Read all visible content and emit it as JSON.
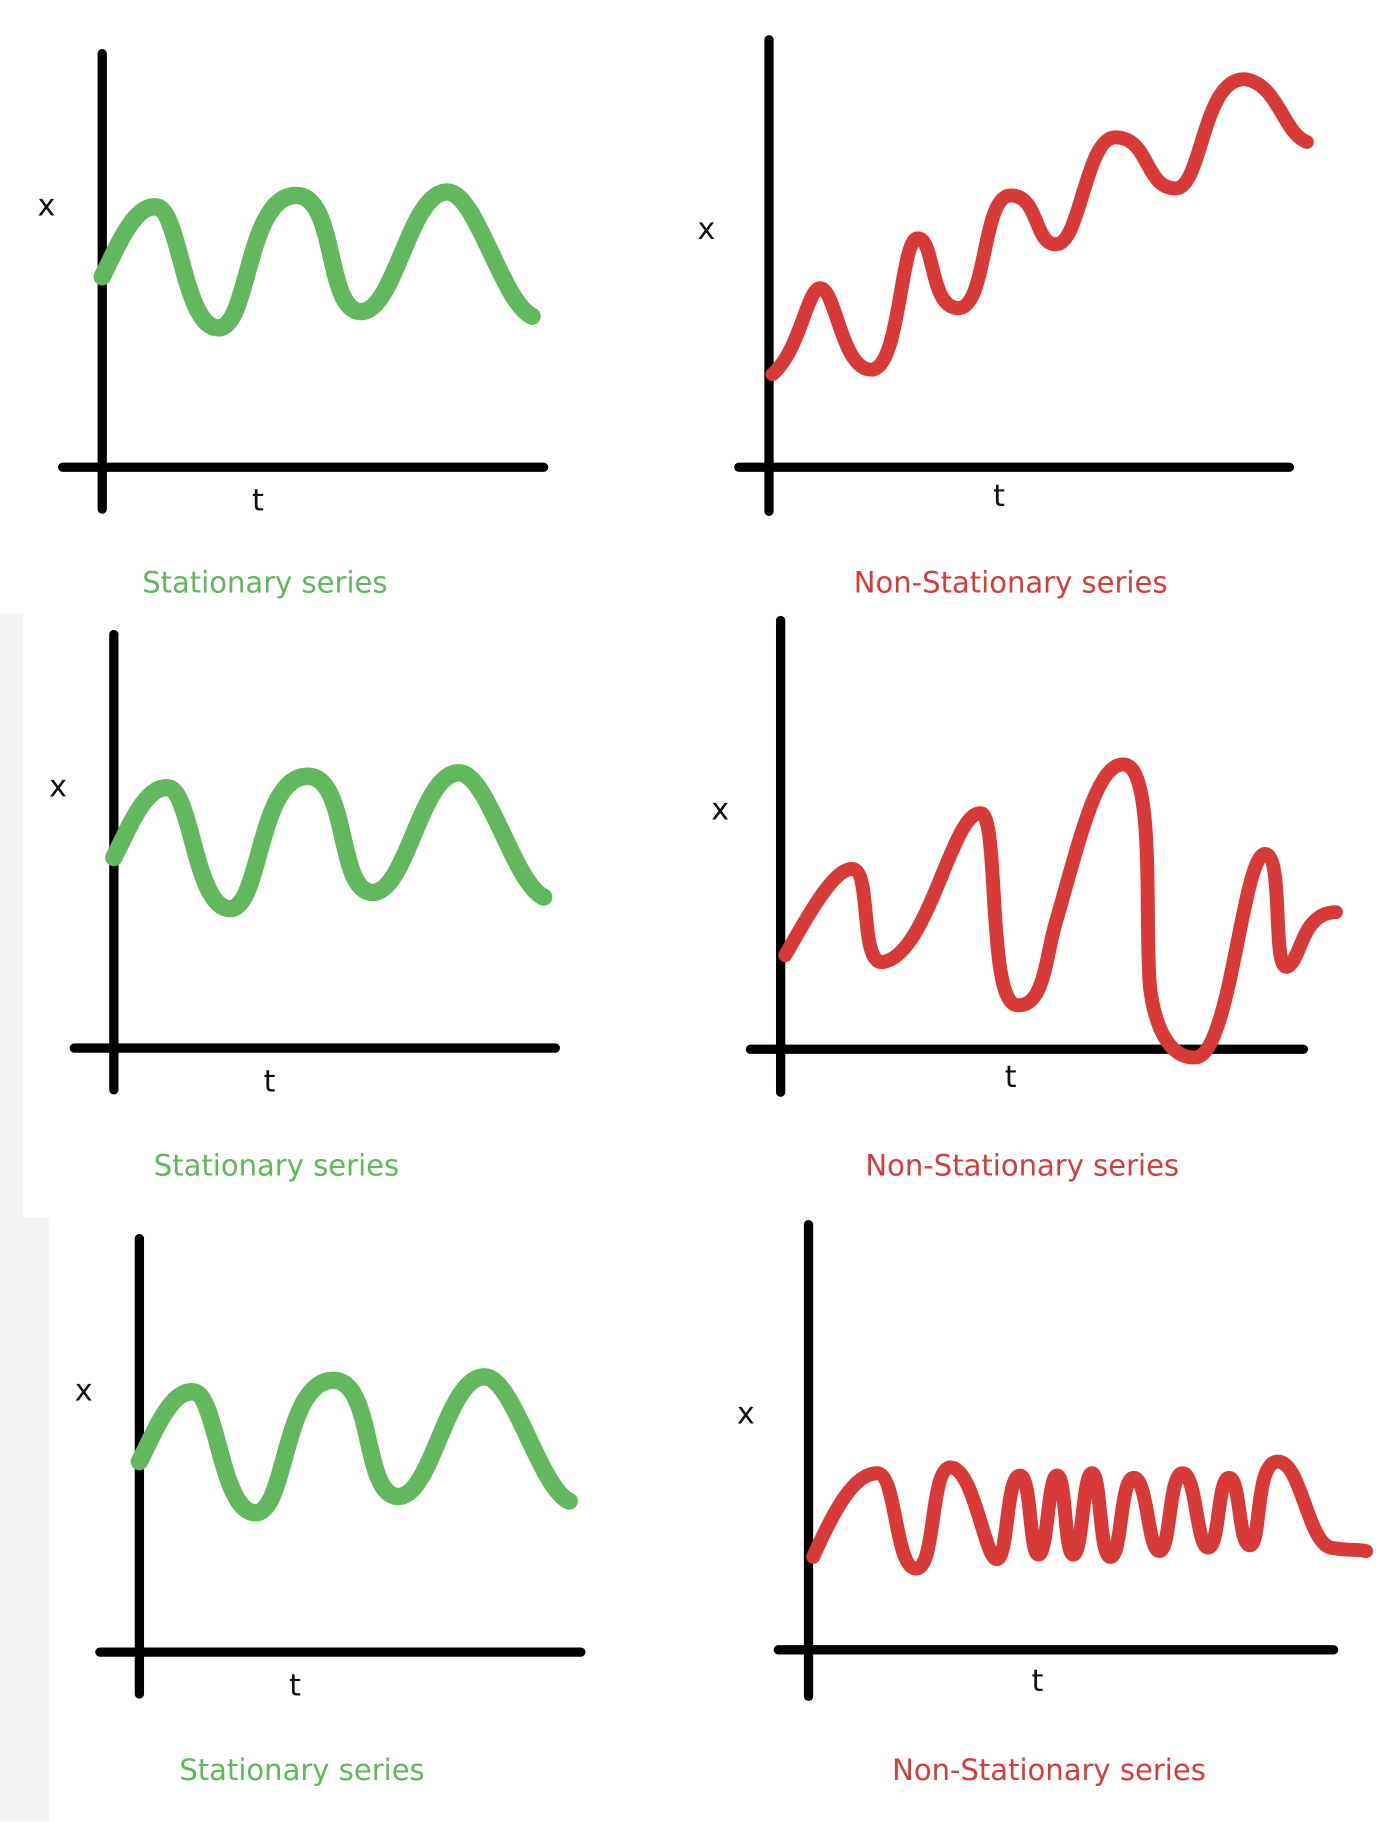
{
  "panels": [
    {
      "y_label": "x",
      "x_label": "t",
      "caption": "Stationary series"
    },
    {
      "y_label": "x",
      "x_label": "t",
      "caption": "Non-Stationary series"
    },
    {
      "y_label": "x",
      "x_label": "t",
      "caption": "Stationary series"
    },
    {
      "y_label": "x",
      "x_label": "t",
      "caption": "Non-Stationary series"
    },
    {
      "y_label": "x",
      "x_label": "t",
      "caption": "Stationary series"
    },
    {
      "y_label": "x",
      "x_label": "t",
      "caption": "Non-Stationary series"
    }
  ]
}
